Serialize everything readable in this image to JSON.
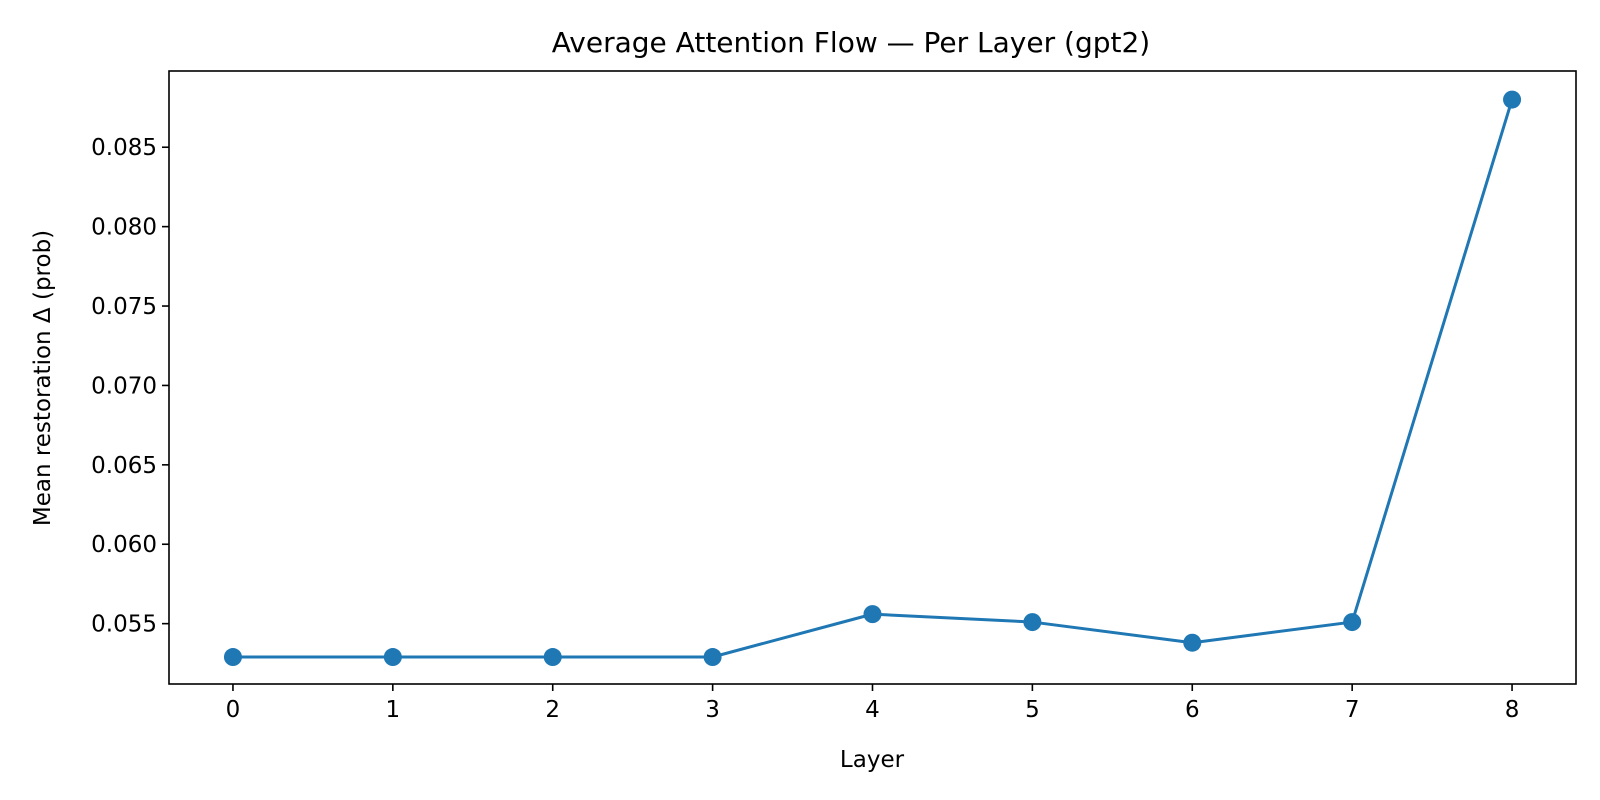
{
  "chart_data": {
    "type": "line",
    "title": "Average Attention Flow — Per Layer (gpt2)",
    "xlabel": "Layer",
    "ylabel": "Mean restoration Δ (prob)",
    "x": [
      0,
      1,
      2,
      3,
      4,
      5,
      6,
      7,
      8
    ],
    "series": [
      {
        "values": [
          0.0529,
          0.0529,
          0.0529,
          0.0529,
          0.0556,
          0.0551,
          0.0538,
          0.0551,
          0.088
        ],
        "color": "#1f77b4",
        "marker": "circle"
      }
    ],
    "xlim": [
      -0.4,
      8.4
    ],
    "ylim": [
      0.0512,
      0.0898
    ],
    "xticks": [
      0,
      1,
      2,
      3,
      4,
      5,
      6,
      7,
      8
    ],
    "xtick_labels": [
      "0",
      "1",
      "2",
      "3",
      "4",
      "5",
      "6",
      "7",
      "8"
    ],
    "yticks": [
      0.055,
      0.06,
      0.065,
      0.07,
      0.075,
      0.08,
      0.085
    ],
    "ytick_labels": [
      "0.055",
      "0.060",
      "0.065",
      "0.070",
      "0.075",
      "0.080",
      "0.085"
    ],
    "grid": false,
    "legend": false
  }
}
